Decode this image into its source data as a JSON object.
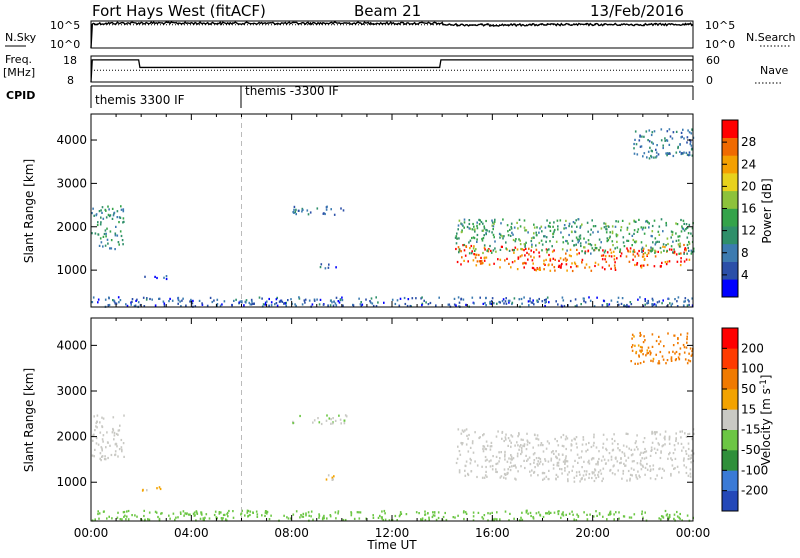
{
  "header": {
    "site": "Fort Hays West (fitACF)",
    "beam": "Beam 21",
    "date": "13/Feb/2016"
  },
  "top_panels": {
    "nsky_label": "N.Sky",
    "nsky_ticks": [
      "10^5",
      "10^0"
    ],
    "nsearch_label": "N.Search",
    "nsearch_ticks": [
      "10^5",
      "10^0"
    ],
    "freq_label": "Freq.",
    "freq_unit": "[MHz]",
    "freq_ticks": [
      "18",
      "8"
    ],
    "nave_label": "Nave",
    "nave_ticks": [
      "60",
      "0"
    ],
    "cpid_label": "CPID",
    "cpid_segments": [
      {
        "label": "themis 3300 IF",
        "start": "00:00",
        "end": "06:00"
      },
      {
        "label": "themis -3300 IF",
        "start": "06:00",
        "end": "24:00"
      }
    ]
  },
  "chart_data": [
    {
      "type": "line",
      "title": "",
      "xlabel": "",
      "ylabel": "N.Sky",
      "x_range_hours": [
        0,
        24
      ],
      "y_scale": "log",
      "ylim": [
        1,
        100000
      ],
      "series": [
        {
          "name": "N.Sky",
          "style": "solid",
          "x": [
            0.0,
            0.05,
            1,
            2,
            4,
            6,
            8,
            10,
            12,
            14,
            14.1,
            16,
            18,
            20,
            22,
            24
          ],
          "y": [
            1,
            30000,
            40000,
            42000,
            40000,
            38000,
            38000,
            40000,
            38000,
            36000,
            20000,
            18000,
            20000,
            22000,
            22000,
            24000
          ]
        },
        {
          "name": "N.Search",
          "style": "dotted",
          "x": [
            0,
            24
          ],
          "y": [
            20000,
            20000
          ]
        }
      ]
    },
    {
      "type": "line",
      "title": "",
      "xlabel": "",
      "ylabel": "Freq. [MHz]",
      "x_range_hours": [
        0,
        24
      ],
      "ylim": [
        8,
        18
      ],
      "y2lim": [
        0,
        60
      ],
      "series": [
        {
          "name": "Freq.",
          "style": "solid",
          "x": [
            0,
            0.05,
            1.9,
            1.95,
            13.9,
            13.95,
            24
          ],
          "y": [
            8,
            16.5,
            16.5,
            13.6,
            13.6,
            16.5,
            16.5
          ]
        },
        {
          "name": "Nave",
          "style": "dotted",
          "axis": "right",
          "x": [
            0,
            24
          ],
          "y": [
            27,
            27
          ]
        }
      ]
    },
    {
      "type": "heatmap",
      "title": "",
      "xlabel": "",
      "ylabel": "Slant Range [km]",
      "x_range_hours": [
        0,
        24
      ],
      "ylim": [
        150,
        4600
      ],
      "colorbar": {
        "label": "Power [dB]",
        "ticks": [
          "28",
          "24",
          "20",
          "16",
          "12",
          "8",
          "4"
        ],
        "range": [
          0,
          30
        ],
        "colors": [
          "#0000ff",
          "#2b4fa8",
          "#3c7bb0",
          "#2f8f6a",
          "#34a34a",
          "#8dc23b",
          "#e8d21c",
          "#f4a000",
          "#f06a00",
          "#ff0000"
        ]
      },
      "dashed_vline_hour": 6.0,
      "features": [
        {
          "hours": [
            0.0,
            1.3
          ],
          "range_km": [
            1500,
            2500
          ],
          "value": 10
        },
        {
          "hours": [
            2.0,
            3.1
          ],
          "range_km": [
            820,
            920
          ],
          "value": 6
        },
        {
          "hours": [
            8.0,
            10.3
          ],
          "range_km": [
            2300,
            2500
          ],
          "value": 7
        },
        {
          "hours": [
            9.1,
            9.8
          ],
          "range_km": [
            1050,
            1200
          ],
          "value": 6
        },
        {
          "hours": [
            14.5,
            24.0
          ],
          "range_km": [
            1150,
            1650
          ],
          "value": 26
        },
        {
          "hours": [
            14.5,
            24.0
          ],
          "range_km": [
            1400,
            2200
          ],
          "value": 12
        },
        {
          "hours": [
            21.5,
            24.0
          ],
          "range_km": [
            3600,
            4300
          ],
          "value": 8
        },
        {
          "hours": [
            0.0,
            24.0
          ],
          "range_km": [
            180,
            400
          ],
          "value": 6
        }
      ]
    },
    {
      "type": "heatmap",
      "title": "",
      "xlabel": "Time UT",
      "ylabel": "Slant Range [km]",
      "x_range_hours": [
        0,
        24
      ],
      "ylim": [
        150,
        4600
      ],
      "xticks": [
        "00:00",
        "04:00",
        "08:00",
        "12:00",
        "16:00",
        "20:00",
        "00:00"
      ],
      "yticks": [
        "1000",
        "2000",
        "3000",
        "4000"
      ],
      "colorbar": {
        "label": "Velocity [m s^-1]",
        "ticks": [
          "200",
          "100",
          "50",
          "15",
          "-15",
          "-50",
          "-100",
          "-200"
        ],
        "range": [
          -250,
          250
        ],
        "colors": [
          "#2448b8",
          "#3a7ad6",
          "#2f8f3a",
          "#6cc644",
          "#c9c9c4",
          "#f3a300",
          "#f07a00",
          "#ff3b00",
          "#ff0000"
        ]
      },
      "dashed_vline_hour": 6.0,
      "features": [
        {
          "hours": [
            0.0,
            1.3
          ],
          "range_km": [
            1500,
            2500
          ],
          "value": 0
        },
        {
          "hours": [
            2.0,
            3.1
          ],
          "range_km": [
            820,
            920
          ],
          "value": 30
        },
        {
          "hours": [
            8.0,
            10.3
          ],
          "range_km": [
            2300,
            2500
          ],
          "value": -20
        },
        {
          "hours": [
            9.1,
            9.8
          ],
          "range_km": [
            1050,
            1200
          ],
          "value": 30
        },
        {
          "hours": [
            14.5,
            24.0
          ],
          "range_km": [
            1150,
            2200
          ],
          "value": 0
        },
        {
          "hours": [
            21.5,
            24.0
          ],
          "range_km": [
            3600,
            4300
          ],
          "value": 100
        },
        {
          "hours": [
            0.0,
            24.0
          ],
          "range_km": [
            180,
            400
          ],
          "value": -60
        }
      ]
    }
  ]
}
